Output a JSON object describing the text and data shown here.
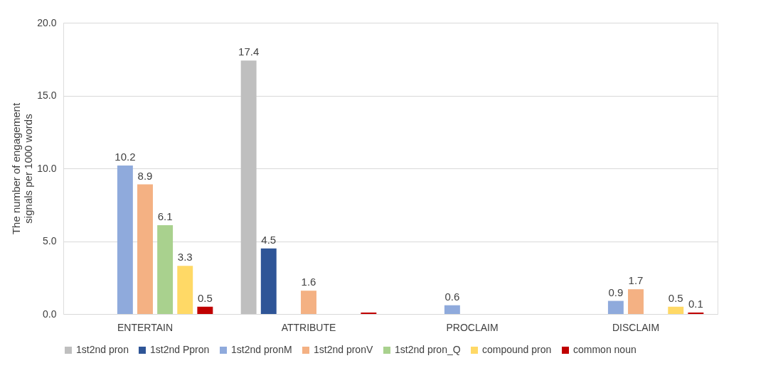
{
  "chart_data": {
    "type": "bar",
    "ylabel": "The number of engagement signals per 1000 words",
    "categories": [
      "ENTERTAIN",
      "ATTRIBUTE",
      "PROCLAIM",
      "DISCLAIM"
    ],
    "series": [
      {
        "name": "1st2nd pron",
        "color": "#bfbfbf",
        "values": [
          null,
          17.4,
          null,
          null
        ],
        "value_labels": [
          null,
          "17.4",
          null,
          null
        ]
      },
      {
        "name": "1st2nd Ppron",
        "color": "#2f5597",
        "values": [
          null,
          4.5,
          null,
          null
        ],
        "value_labels": [
          null,
          "4.5",
          null,
          null
        ]
      },
      {
        "name": "1st2nd pronM",
        "color": "#8faadc",
        "values": [
          10.2,
          null,
          0.6,
          0.9
        ],
        "value_labels": [
          "10.2",
          null,
          "0.6",
          "0.9"
        ]
      },
      {
        "name": "1st2nd pronV",
        "color": "#f4b183",
        "values": [
          8.9,
          1.6,
          null,
          1.7
        ],
        "value_labels": [
          "8.9",
          "1.6",
          null,
          "1.7"
        ]
      },
      {
        "name": "1st2nd pron_Q",
        "color": "#a9d18e",
        "values": [
          6.1,
          null,
          null,
          null
        ],
        "value_labels": [
          "6.1",
          null,
          null,
          null
        ]
      },
      {
        "name": "compound pron",
        "color": "#ffd966",
        "values": [
          3.3,
          null,
          null,
          0.5
        ],
        "value_labels": [
          "3.3",
          null,
          null,
          "0.5"
        ]
      },
      {
        "name": "common noun",
        "color": "#c00000",
        "values": [
          0.5,
          0.1,
          null,
          0.1
        ],
        "value_labels": [
          "0.5",
          null,
          null,
          "0.1"
        ]
      }
    ],
    "ylim": [
      0,
      20
    ],
    "yticks": [
      {
        "value": 0,
        "label": "0.0"
      },
      {
        "value": 5,
        "label": "5.0"
      },
      {
        "value": 10,
        "label": "10.0"
      },
      {
        "value": 15,
        "label": "15.0"
      },
      {
        "value": 20,
        "label": "20.0"
      }
    ],
    "grid": "y",
    "legend": "bottom"
  }
}
